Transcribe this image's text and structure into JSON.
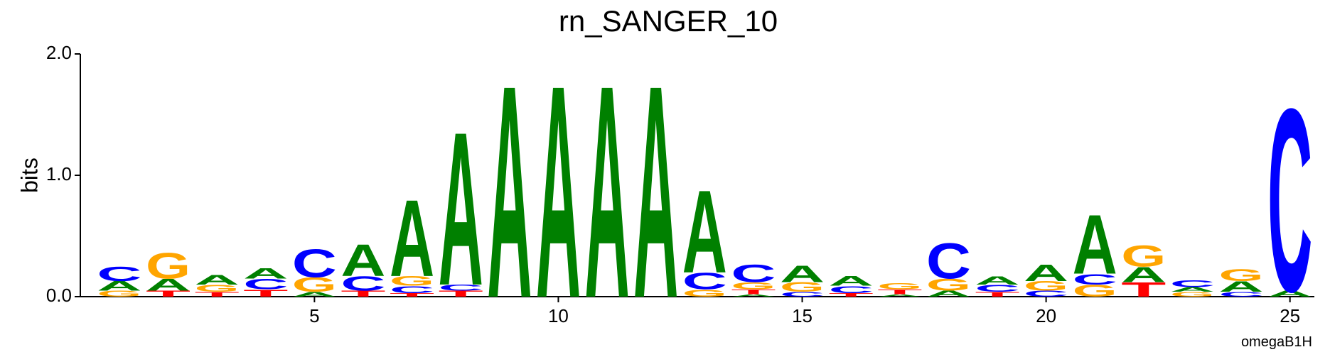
{
  "chart_data": {
    "type": "logo",
    "title": "rn_SANGER_10",
    "ylabel": "bits",
    "footnote": "omegaB1H",
    "colors": {
      "A": "#008000",
      "C": "#0000ff",
      "G": "#ffa500",
      "T": "#ff0000"
    },
    "x": [
      1,
      2,
      3,
      4,
      5,
      6,
      7,
      8,
      9,
      10,
      11,
      12,
      13,
      14,
      15,
      16,
      17,
      18,
      19,
      20,
      21,
      22,
      23,
      24,
      25
    ],
    "stacks": [
      [
        {
          "letter": "G",
          "bits": 0.05
        },
        {
          "letter": "A",
          "bits": 0.08
        },
        {
          "letter": "C",
          "bits": 0.12
        }
      ],
      [
        {
          "letter": "T",
          "bits": 0.05
        },
        {
          "letter": "A",
          "bits": 0.1
        },
        {
          "letter": "G",
          "bits": 0.22
        }
      ],
      [
        {
          "letter": "T",
          "bits": 0.04
        },
        {
          "letter": "G",
          "bits": 0.06
        },
        {
          "letter": "A",
          "bits": 0.08
        }
      ],
      [
        {
          "letter": "T",
          "bits": 0.06
        },
        {
          "letter": "C",
          "bits": 0.09
        },
        {
          "letter": "A",
          "bits": 0.09
        }
      ],
      [
        {
          "letter": "A",
          "bits": 0.04
        },
        {
          "letter": "G",
          "bits": 0.12
        },
        {
          "letter": "C",
          "bits": 0.24
        }
      ],
      [
        {
          "letter": "T",
          "bits": 0.05
        },
        {
          "letter": "C",
          "bits": 0.12
        },
        {
          "letter": "A",
          "bits": 0.27
        }
      ],
      [
        {
          "letter": "T",
          "bits": 0.03
        },
        {
          "letter": "C",
          "bits": 0.06
        },
        {
          "letter": "G",
          "bits": 0.08
        },
        {
          "letter": "A",
          "bits": 0.65
        }
      ],
      [
        {
          "letter": "T",
          "bits": 0.05
        },
        {
          "letter": "C",
          "bits": 0.05
        },
        {
          "letter": "A",
          "bits": 1.3
        }
      ],
      [
        {
          "letter": "A",
          "bits": 1.8
        }
      ],
      [
        {
          "letter": "A",
          "bits": 1.8
        }
      ],
      [
        {
          "letter": "A",
          "bits": 1.8
        }
      ],
      [
        {
          "letter": "A",
          "bits": 1.8
        }
      ],
      [
        {
          "letter": "G",
          "bits": 0.06
        },
        {
          "letter": "C",
          "bits": 0.14
        },
        {
          "letter": "A",
          "bits": 0.7
        }
      ],
      [
        {
          "letter": "A",
          "bits": 0.02
        },
        {
          "letter": "T",
          "bits": 0.04
        },
        {
          "letter": "G",
          "bits": 0.06
        },
        {
          "letter": "C",
          "bits": 0.15
        }
      ],
      [
        {
          "letter": "C",
          "bits": 0.04
        },
        {
          "letter": "G",
          "bits": 0.08
        },
        {
          "letter": "A",
          "bits": 0.14
        }
      ],
      [
        {
          "letter": "T",
          "bits": 0.03
        },
        {
          "letter": "C",
          "bits": 0.06
        },
        {
          "letter": "A",
          "bits": 0.08
        }
      ],
      [
        {
          "letter": "A",
          "bits": 0.02
        },
        {
          "letter": "T",
          "bits": 0.04
        },
        {
          "letter": "G",
          "bits": 0.05
        }
      ],
      [
        {
          "letter": "A",
          "bits": 0.05
        },
        {
          "letter": "G",
          "bits": 0.1
        },
        {
          "letter": "C",
          "bits": 0.3
        }
      ],
      [
        {
          "letter": "T",
          "bits": 0.04
        },
        {
          "letter": "C",
          "bits": 0.06
        },
        {
          "letter": "A",
          "bits": 0.07
        }
      ],
      [
        {
          "letter": "C",
          "bits": 0.05
        },
        {
          "letter": "G",
          "bits": 0.08
        },
        {
          "letter": "A",
          "bits": 0.14
        }
      ],
      [
        {
          "letter": "G",
          "bits": 0.1
        },
        {
          "letter": "C",
          "bits": 0.09
        },
        {
          "letter": "A",
          "bits": 0.5
        }
      ],
      [
        {
          "letter": "T",
          "bits": 0.12
        },
        {
          "letter": "A",
          "bits": 0.13
        },
        {
          "letter": "G",
          "bits": 0.18
        }
      ],
      [
        {
          "letter": "G",
          "bits": 0.04
        },
        {
          "letter": "A",
          "bits": 0.04
        },
        {
          "letter": "C",
          "bits": 0.06
        }
      ],
      [
        {
          "letter": "C",
          "bits": 0.04
        },
        {
          "letter": "A",
          "bits": 0.09
        },
        {
          "letter": "G",
          "bits": 0.1
        }
      ],
      [
        {
          "letter": "A",
          "bits": 0.05
        },
        {
          "letter": "C",
          "bits": 1.55
        }
      ]
    ],
    "xlim": [
      0.2,
      25.5
    ],
    "xticks": [
      5,
      10,
      15,
      20,
      25
    ],
    "ylim": [
      0,
      2
    ],
    "yticks": [
      {
        "value": 0,
        "label": "0.0"
      },
      {
        "value": 1,
        "label": "1.0"
      },
      {
        "value": 2,
        "label": "2.0"
      }
    ]
  }
}
